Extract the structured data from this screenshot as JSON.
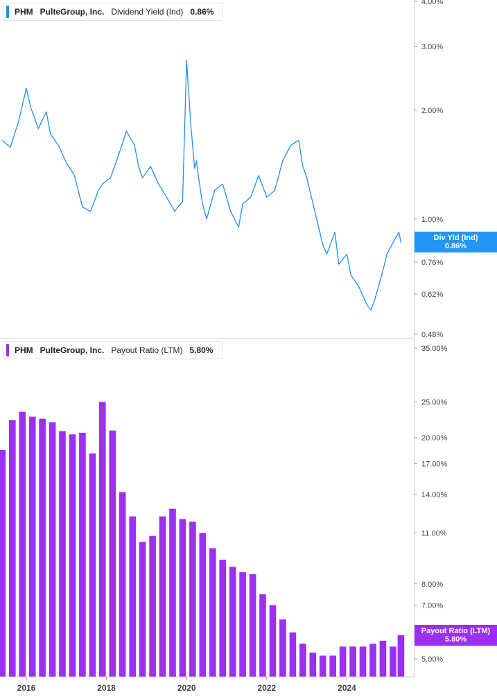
{
  "colors": {
    "yield": "#1f8ff0",
    "payout": "#9b30f2",
    "badge_yield": "#2196f3",
    "badge_payout": "#9b30f2"
  },
  "top_panel": {
    "ticker": "PHM",
    "company": "PulteGroup, Inc.",
    "metric": "Dividend Yield (Ind)",
    "value": "0.86%",
    "badge_label": "Div Yld (Ind)",
    "badge_value": "0.86%"
  },
  "bottom_panel": {
    "ticker": "PHM",
    "company": "PulteGroup, Inc.",
    "metric": "Payout Ratio (LTM)",
    "value": "5.80%",
    "badge_label": "Payout Ratio (LTM)",
    "badge_value": "5.80%"
  },
  "x_axis": {
    "tick_labels": [
      "2016",
      "2018",
      "2020",
      "2022",
      "2024"
    ],
    "tick_years": [
      2016,
      2018,
      2020,
      2022,
      2024
    ]
  },
  "chart_data": [
    {
      "type": "line",
      "series": [
        {
          "name": "Dividend Yield (Ind)",
          "x": [
            2015.4,
            2015.6,
            2015.8,
            2016.0,
            2016.1,
            2016.3,
            2016.5,
            2016.6,
            2016.8,
            2017.0,
            2017.2,
            2017.4,
            2017.6,
            2017.8,
            2017.9,
            2018.1,
            2018.3,
            2018.5,
            2018.7,
            2018.8,
            2018.9,
            2019.1,
            2019.3,
            2019.5,
            2019.7,
            2019.9,
            2020.0,
            2020.1,
            2020.2,
            2020.25,
            2020.3,
            2020.4,
            2020.5,
            2020.7,
            2020.9,
            2021.1,
            2021.3,
            2021.4,
            2021.6,
            2021.8,
            2022.0,
            2022.2,
            2022.4,
            2022.6,
            2022.8,
            2022.9,
            2023.0,
            2023.2,
            2023.4,
            2023.5,
            2023.7,
            2023.8,
            2024.0,
            2024.1,
            2024.3,
            2024.5,
            2024.6,
            2024.7,
            2024.9,
            2025.0,
            2025.2,
            2025.3,
            2025.35
          ],
          "values": [
            1.65,
            1.58,
            1.85,
            2.3,
            2.05,
            1.78,
            1.98,
            1.72,
            1.6,
            1.43,
            1.32,
            1.08,
            1.05,
            1.2,
            1.25,
            1.3,
            1.5,
            1.75,
            1.6,
            1.4,
            1.3,
            1.4,
            1.25,
            1.15,
            1.05,
            1.12,
            2.75,
            1.85,
            1.38,
            1.45,
            1.3,
            1.1,
            1.0,
            1.2,
            1.25,
            1.05,
            0.95,
            1.1,
            1.15,
            1.32,
            1.15,
            1.2,
            1.45,
            1.6,
            1.65,
            1.4,
            1.3,
            1.05,
            0.85,
            0.8,
            0.92,
            0.75,
            0.8,
            0.7,
            0.65,
            0.58,
            0.56,
            0.6,
            0.72,
            0.8,
            0.88,
            0.92,
            0.86
          ]
        }
      ],
      "ylim": [
        0.48,
        4.0
      ],
      "y_scale": "log",
      "y_tick_labels": [
        "4.00%",
        "3.00%",
        "2.00%",
        "1.00%",
        "0.76%",
        "0.62%",
        "0.48%"
      ],
      "y_tick_values": [
        4.0,
        3.0,
        2.0,
        1.0,
        0.76,
        0.62,
        0.48
      ]
    },
    {
      "type": "bar",
      "series": [
        {
          "name": "Payout Ratio (LTM)",
          "x": [
            2015.4,
            2015.65,
            2015.9,
            2016.15,
            2016.4,
            2016.65,
            2016.9,
            2017.15,
            2017.4,
            2017.65,
            2017.9,
            2018.15,
            2018.4,
            2018.65,
            2018.9,
            2019.15,
            2019.4,
            2019.65,
            2019.9,
            2020.15,
            2020.4,
            2020.65,
            2020.9,
            2021.15,
            2021.4,
            2021.65,
            2021.9,
            2022.15,
            2022.4,
            2022.65,
            2022.9,
            2023.15,
            2023.4,
            2023.65,
            2023.9,
            2024.15,
            2024.4,
            2024.65,
            2024.9,
            2025.15,
            2025.35
          ],
          "values": [
            18.5,
            22.3,
            23.5,
            22.8,
            22.5,
            22.0,
            20.8,
            20.4,
            20.6,
            18.1,
            25.0,
            20.9,
            14.2,
            12.2,
            10.4,
            10.8,
            12.2,
            12.8,
            12.0,
            11.8,
            11.0,
            10.0,
            9.3,
            8.9,
            8.6,
            8.5,
            7.5,
            7.0,
            6.4,
            5.9,
            5.5,
            5.2,
            5.1,
            5.1,
            5.4,
            5.4,
            5.4,
            5.5,
            5.6,
            5.4,
            5.8
          ]
        }
      ],
      "ylim": [
        4.5,
        35.0
      ],
      "y_scale": "log",
      "y_tick_labels": [
        "35.00%",
        "25.00%",
        "20.00%",
        "17.00%",
        "14.00%",
        "11.00%",
        "8.00%",
        "7.00%",
        "5.00%"
      ],
      "y_tick_values": [
        35.0,
        25.0,
        20.0,
        17.0,
        14.0,
        11.0,
        8.0,
        7.0,
        5.0
      ]
    }
  ]
}
